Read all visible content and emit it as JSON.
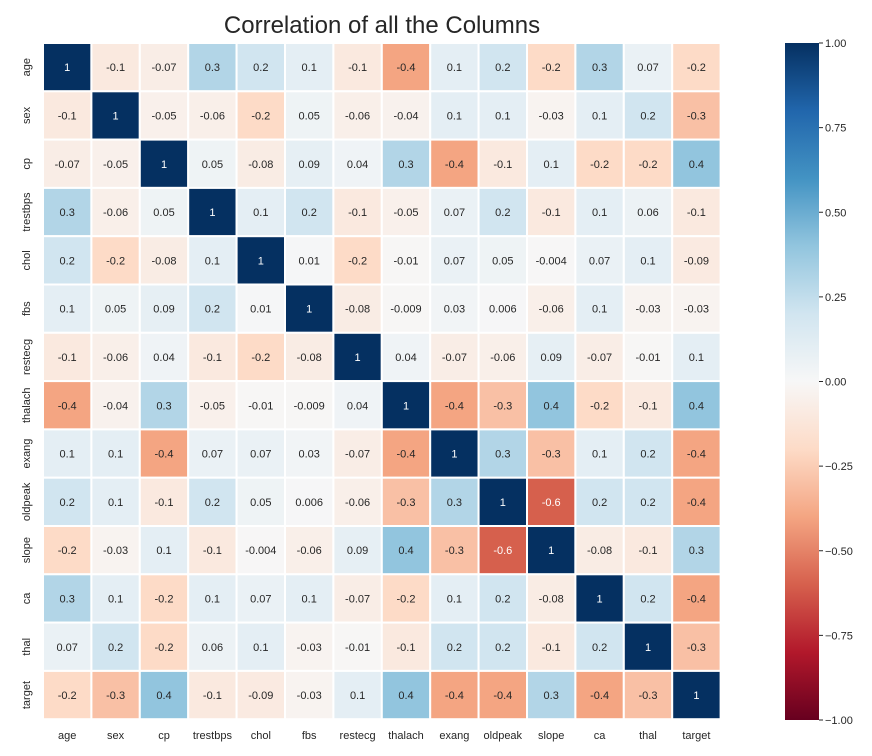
{
  "chart_data": {
    "type": "heatmap",
    "title": "Correlation of all the Columns",
    "x_labels": [
      "age",
      "sex",
      "cp",
      "trestbps",
      "chol",
      "fbs",
      "restecg",
      "thalach",
      "exang",
      "oldpeak",
      "slope",
      "ca",
      "thal",
      "target"
    ],
    "y_labels": [
      "age",
      "sex",
      "cp",
      "trestbps",
      "chol",
      "fbs",
      "restecg",
      "thalach",
      "exang",
      "oldpeak",
      "slope",
      "ca",
      "thal",
      "target"
    ],
    "values": [
      [
        1,
        -0.1,
        -0.07,
        0.3,
        0.2,
        0.1,
        -0.1,
        -0.4,
        0.1,
        0.2,
        -0.2,
        0.3,
        0.07,
        -0.2
      ],
      [
        -0.1,
        1,
        -0.05,
        -0.06,
        -0.2,
        0.05,
        -0.06,
        -0.04,
        0.1,
        0.1,
        -0.03,
        0.1,
        0.2,
        -0.3
      ],
      [
        -0.07,
        -0.05,
        1,
        0.05,
        -0.08,
        0.09,
        0.04,
        0.3,
        -0.4,
        -0.1,
        0.1,
        -0.2,
        -0.2,
        0.4
      ],
      [
        0.3,
        -0.06,
        0.05,
        1,
        0.1,
        0.2,
        -0.1,
        -0.05,
        0.07,
        0.2,
        -0.1,
        0.1,
        0.06,
        -0.1
      ],
      [
        0.2,
        -0.2,
        -0.08,
        0.1,
        1,
        0.01,
        -0.2,
        -0.01,
        0.07,
        0.05,
        -0.004,
        0.07,
        0.1,
        -0.09
      ],
      [
        0.1,
        0.05,
        0.09,
        0.2,
        0.01,
        1,
        -0.08,
        -0.009,
        0.03,
        0.006,
        -0.06,
        0.1,
        -0.03,
        -0.03
      ],
      [
        -0.1,
        -0.06,
        0.04,
        -0.1,
        -0.2,
        -0.08,
        1,
        0.04,
        -0.07,
        -0.06,
        0.09,
        -0.07,
        -0.01,
        0.1
      ],
      [
        -0.4,
        -0.04,
        0.3,
        -0.05,
        -0.01,
        -0.009,
        0.04,
        1,
        -0.4,
        -0.3,
        0.4,
        -0.2,
        -0.1,
        0.4
      ],
      [
        0.1,
        0.1,
        -0.4,
        0.07,
        0.07,
        0.03,
        -0.07,
        -0.4,
        1,
        0.3,
        -0.3,
        0.1,
        0.2,
        -0.4
      ],
      [
        0.2,
        0.1,
        -0.1,
        0.2,
        0.05,
        0.006,
        -0.06,
        -0.3,
        0.3,
        1,
        -0.6,
        0.2,
        0.2,
        -0.4
      ],
      [
        -0.2,
        -0.03,
        0.1,
        -0.1,
        -0.004,
        -0.06,
        0.09,
        0.4,
        -0.3,
        -0.6,
        1,
        -0.08,
        -0.1,
        0.3
      ],
      [
        0.3,
        0.1,
        -0.2,
        0.1,
        0.07,
        0.1,
        -0.07,
        -0.2,
        0.1,
        0.2,
        -0.08,
        1,
        0.2,
        -0.4
      ],
      [
        0.07,
        0.2,
        -0.2,
        0.06,
        0.1,
        -0.03,
        -0.01,
        -0.1,
        0.2,
        0.2,
        -0.1,
        0.2,
        1,
        -0.3
      ],
      [
        -0.2,
        -0.3,
        0.4,
        -0.1,
        -0.09,
        -0.03,
        0.1,
        0.4,
        -0.4,
        -0.4,
        0.3,
        -0.4,
        -0.3,
        1
      ]
    ],
    "value_labels": [
      [
        "1",
        "-0.1",
        "-0.07",
        "0.3",
        "0.2",
        "0.1",
        "-0.1",
        "-0.4",
        "0.1",
        "0.2",
        "-0.2",
        "0.3",
        "0.07",
        "-0.2"
      ],
      [
        "-0.1",
        "1",
        "-0.05",
        "-0.06",
        "-0.2",
        "0.05",
        "-0.06",
        "-0.04",
        "0.1",
        "0.1",
        "-0.03",
        "0.1",
        "0.2",
        "-0.3"
      ],
      [
        "-0.07",
        "-0.05",
        "1",
        "0.05",
        "-0.08",
        "0.09",
        "0.04",
        "0.3",
        "-0.4",
        "-0.1",
        "0.1",
        "-0.2",
        "-0.2",
        "0.4"
      ],
      [
        "0.3",
        "-0.06",
        "0.05",
        "1",
        "0.1",
        "0.2",
        "-0.1",
        "-0.05",
        "0.07",
        "0.2",
        "-0.1",
        "0.1",
        "0.06",
        "-0.1"
      ],
      [
        "0.2",
        "-0.2",
        "-0.08",
        "0.1",
        "1",
        "0.01",
        "-0.2",
        "-0.01",
        "0.07",
        "0.05",
        "-0.004",
        "0.07",
        "0.1",
        "-0.09"
      ],
      [
        "0.1",
        "0.05",
        "0.09",
        "0.2",
        "0.01",
        "1",
        "-0.08",
        "-0.009",
        "0.03",
        "0.006",
        "-0.06",
        "0.1",
        "-0.03",
        "-0.03"
      ],
      [
        "-0.1",
        "-0.06",
        "0.04",
        "-0.1",
        "-0.2",
        "-0.08",
        "1",
        "0.04",
        "-0.07",
        "-0.06",
        "0.09",
        "-0.07",
        "-0.01",
        "0.1"
      ],
      [
        "-0.4",
        "-0.04",
        "0.3",
        "-0.05",
        "-0.01",
        "-0.009",
        "0.04",
        "1",
        "-0.4",
        "-0.3",
        "0.4",
        "-0.2",
        "-0.1",
        "0.4"
      ],
      [
        "0.1",
        "0.1",
        "-0.4",
        "0.07",
        "0.07",
        "0.03",
        "-0.07",
        "-0.4",
        "1",
        "0.3",
        "-0.3",
        "0.1",
        "0.2",
        "-0.4"
      ],
      [
        "0.2",
        "0.1",
        "-0.1",
        "0.2",
        "0.05",
        "0.006",
        "-0.06",
        "-0.3",
        "0.3",
        "1",
        "-0.6",
        "0.2",
        "0.2",
        "-0.4"
      ],
      [
        "-0.2",
        "-0.03",
        "0.1",
        "-0.1",
        "-0.004",
        "-0.06",
        "0.09",
        "0.4",
        "-0.3",
        "-0.6",
        "1",
        "-0.08",
        "-0.1",
        "0.3"
      ],
      [
        "0.3",
        "0.1",
        "-0.2",
        "0.1",
        "0.07",
        "0.1",
        "-0.07",
        "-0.2",
        "0.1",
        "0.2",
        "-0.08",
        "1",
        "0.2",
        "-0.4"
      ],
      [
        "0.07",
        "0.2",
        "-0.2",
        "0.06",
        "0.1",
        "-0.03",
        "-0.01",
        "-0.1",
        "0.2",
        "0.2",
        "-0.1",
        "0.2",
        "1",
        "-0.3"
      ],
      [
        "-0.2",
        "-0.3",
        "0.4",
        "-0.1",
        "-0.09",
        "-0.03",
        "0.1",
        "0.4",
        "-0.4",
        "-0.4",
        "0.3",
        "-0.4",
        "-0.3",
        "1"
      ]
    ],
    "colorbar": {
      "range": [
        -1.0,
        1.0
      ],
      "ticks": [
        1.0,
        0.75,
        0.5,
        0.25,
        0.0,
        -0.25,
        -0.5,
        -0.75,
        -1.0
      ],
      "tick_labels": [
        "1.00",
        "0.75",
        "0.50",
        "0.25",
        "0.00",
        "−0.25",
        "−0.50",
        "−0.75",
        "−1.00"
      ]
    },
    "colormap": "RdBu",
    "colors": {
      "min": "#67001f",
      "max": "#053061",
      "grid_lines": "#ffffff",
      "text_dark": "#262626",
      "text_light": "#ffffff"
    }
  }
}
